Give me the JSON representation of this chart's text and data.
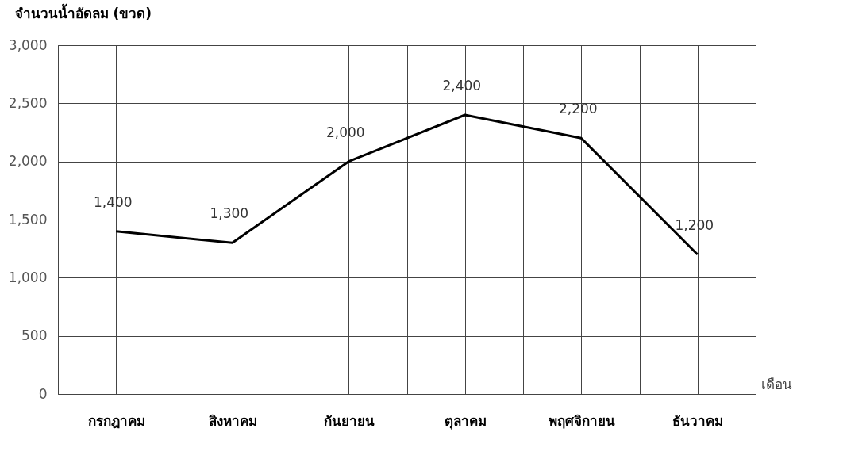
{
  "chart_data": {
    "type": "line",
    "ylabel": "จำนวนน้ำอัดลม (ขวด)",
    "xlabel": "เดือน",
    "categories": [
      "กรกฎาคม",
      "สิงหาคม",
      "กันยายน",
      "ตุลาคม",
      "พฤศจิกายน",
      "ธันวาคม"
    ],
    "series": [
      {
        "color": "#000000",
        "values": [
          1400,
          1300,
          2000,
          2400,
          2200,
          1200
        ],
        "value_labels": [
          "1,400",
          "1,300",
          "2,000",
          "2,400",
          "2,200",
          "1,200"
        ]
      }
    ],
    "ylim": [
      0,
      3000
    ],
    "yticks": [
      0,
      {
        "value": 500,
        "label": "500"
      },
      {
        "value": 1000,
        "label": "1,000"
      },
      {
        "value": 1500,
        "label": "1,500"
      },
      {
        "value": 2000,
        "label": "2,000"
      },
      {
        "value": 2500,
        "label": "2,500"
      },
      {
        "value": 3000,
        "label": "3,000"
      }
    ],
    "grid": true
  }
}
